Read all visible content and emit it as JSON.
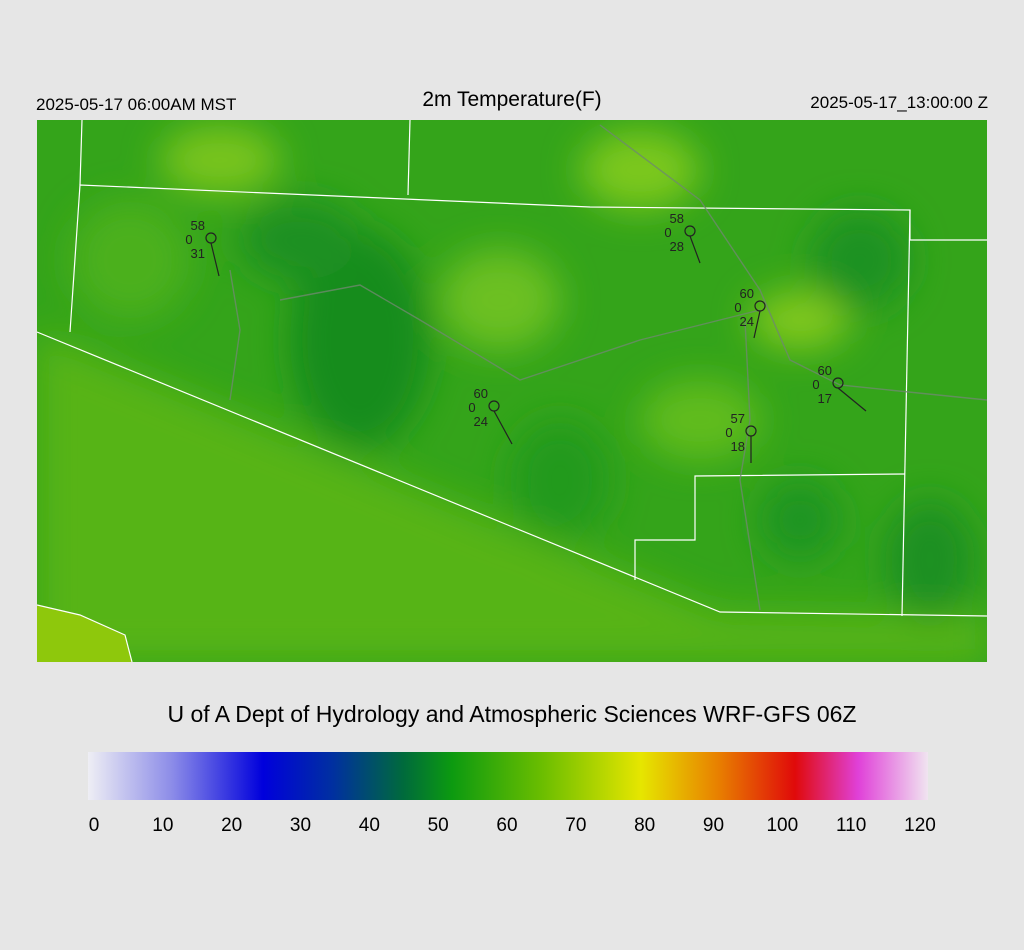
{
  "header": {
    "left": "2025-05-17 06:00AM MST",
    "title": "2m Temperature(F)",
    "right": "2025-05-17_13:00:00 Z"
  },
  "stations": [
    {
      "temperature": 58,
      "wind": 0,
      "dewpoint": 31
    },
    {
      "temperature": 58,
      "wind": 0,
      "dewpoint": 28
    },
    {
      "temperature": 60,
      "wind": 0,
      "dewpoint": 24
    },
    {
      "temperature": 60,
      "wind": 0,
      "dewpoint": 17
    },
    {
      "temperature": 60,
      "wind": 0,
      "dewpoint": 24
    },
    {
      "temperature": 57,
      "wind": 0,
      "dewpoint": 18
    }
  ],
  "credit": "U of A Dept of Hydrology and Atmospheric Sciences WRF-GFS 06Z",
  "colorbar": {
    "ticks": [
      0,
      10,
      20,
      30,
      40,
      50,
      60,
      70,
      80,
      90,
      100,
      110,
      120
    ],
    "range": [
      0,
      120
    ],
    "stops": [
      {
        "value": 0,
        "color": "#eeeef4"
      },
      {
        "value": 12,
        "color": "#8c8ce8"
      },
      {
        "value": 25,
        "color": "#0000dc"
      },
      {
        "value": 35,
        "color": "#0030a0"
      },
      {
        "value": 45,
        "color": "#006a3c"
      },
      {
        "value": 52,
        "color": "#0c9a10"
      },
      {
        "value": 65,
        "color": "#6cbe00"
      },
      {
        "value": 79,
        "color": "#e6e600"
      },
      {
        "value": 90,
        "color": "#e88000"
      },
      {
        "value": 101,
        "color": "#e00a0a"
      },
      {
        "value": 110,
        "color": "#e040d8"
      },
      {
        "value": 120,
        "color": "#f0e4f0"
      }
    ]
  }
}
